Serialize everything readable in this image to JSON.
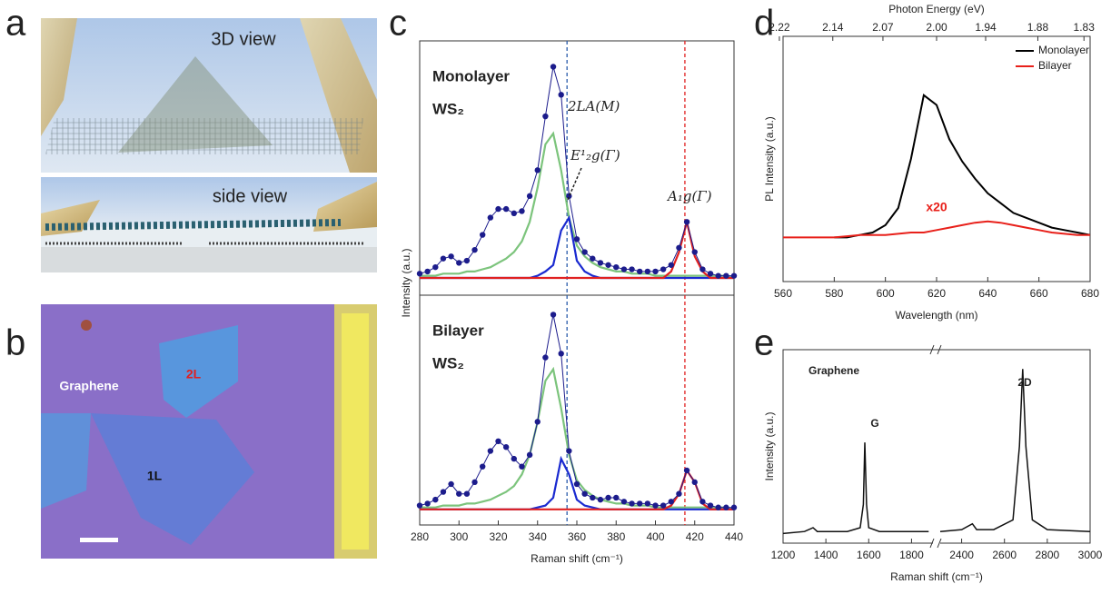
{
  "panels": {
    "labels": [
      "a",
      "b",
      "c",
      "d",
      "e"
    ]
  },
  "panel_a": {
    "captions": [
      "3D view",
      "side view"
    ]
  },
  "panel_b": {
    "labels": [
      "Graphene",
      "2L",
      "1L"
    ]
  },
  "chart_data": [
    {
      "type": "line",
      "ylabel": "Intensity (a.u.)",
      "sample_label": [
        "Monolayer",
        "WS₂"
      ],
      "peak_labels": [
        "2LA(M)",
        "E¹₂g(Γ)",
        "A₁g(Γ)"
      ],
      "x": [
        280,
        284,
        288,
        292,
        296,
        300,
        304,
        308,
        312,
        316,
        320,
        324,
        328,
        332,
        336,
        340,
        344,
        348,
        352,
        356,
        360,
        364,
        368,
        372,
        376,
        380,
        384,
        388,
        392,
        396,
        400,
        404,
        408,
        412,
        416,
        420,
        424,
        428,
        432,
        436,
        440
      ],
      "xlim": [
        280,
        440
      ],
      "ylim": [
        -8,
        110
      ],
      "reference_lines": [
        {
          "value": 355,
          "color": "#2a5caa"
        },
        {
          "value": 415,
          "color": "#e02020"
        }
      ],
      "series": [
        {
          "color": "#7cc47c",
          "values": [
            1,
            1,
            1,
            2,
            2,
            2,
            3,
            3,
            4,
            5,
            7,
            9,
            12,
            17,
            26,
            42,
            62,
            67,
            50,
            28,
            15,
            10,
            7,
            5,
            4,
            3,
            3,
            2,
            2,
            2,
            1,
            1,
            1,
            1,
            1,
            1,
            1,
            1,
            1,
            1,
            0
          ]
        },
        {
          "color": "#1a2ad0",
          "values": [
            0,
            0,
            0,
            0,
            0,
            0,
            0,
            0,
            0,
            0,
            0,
            0,
            0,
            0,
            0,
            1,
            3,
            6,
            22,
            28,
            8,
            3,
            1,
            0,
            0,
            0,
            0,
            0,
            0,
            0,
            0,
            0,
            0,
            0,
            0,
            0,
            0,
            0,
            0,
            0,
            0
          ]
        },
        {
          "color": "#e02020",
          "values": [
            0,
            0,
            0,
            0,
            0,
            0,
            0,
            0,
            0,
            0,
            0,
            0,
            0,
            0,
            0,
            0,
            0,
            0,
            0,
            0,
            0,
            0,
            0,
            0,
            0,
            0,
            0,
            0,
            0,
            0,
            0,
            0,
            3,
            12,
            26,
            10,
            3,
            0,
            0,
            0,
            0
          ]
        },
        {
          "color": "#1c1c8c",
          "marker": true,
          "values": [
            2,
            3,
            5,
            9,
            10,
            7,
            8,
            13,
            20,
            28,
            32,
            32,
            30,
            31,
            38,
            50,
            75,
            98,
            85,
            38,
            18,
            12,
            9,
            7,
            6,
            5,
            4,
            4,
            3,
            3,
            3,
            4,
            6,
            14,
            26,
            12,
            4,
            2,
            1,
            1,
            1
          ]
        }
      ]
    },
    {
      "type": "line",
      "xlabel": "Raman shift (cm⁻¹)",
      "sample_label": [
        "Bilayer",
        "WS₂"
      ],
      "x": [
        280,
        284,
        288,
        292,
        296,
        300,
        304,
        308,
        312,
        316,
        320,
        324,
        328,
        332,
        336,
        340,
        344,
        348,
        352,
        356,
        360,
        364,
        368,
        372,
        376,
        380,
        384,
        388,
        392,
        396,
        400,
        404,
        408,
        412,
        416,
        420,
        424,
        428,
        432,
        436,
        440
      ],
      "xlim": [
        280,
        440
      ],
      "xticks": [
        280,
        300,
        320,
        340,
        360,
        380,
        400,
        420,
        440
      ],
      "ylim": [
        -8,
        110
      ],
      "reference_lines": [
        {
          "value": 355,
          "color": "#2a5caa"
        },
        {
          "value": 415,
          "color": "#e02020"
        }
      ],
      "series": [
        {
          "color": "#7cc47c",
          "values": [
            1,
            1,
            1,
            2,
            2,
            2,
            3,
            3,
            4,
            5,
            7,
            9,
            12,
            18,
            28,
            45,
            66,
            72,
            52,
            28,
            15,
            10,
            7,
            5,
            4,
            3,
            3,
            2,
            2,
            2,
            1,
            1,
            1,
            1,
            1,
            1,
            1,
            1,
            1,
            1,
            0
          ]
        },
        {
          "color": "#1a2ad0",
          "values": [
            0,
            0,
            0,
            0,
            0,
            0,
            0,
            0,
            0,
            0,
            0,
            0,
            0,
            0,
            0,
            1,
            2,
            6,
            26,
            18,
            5,
            2,
            1,
            0,
            0,
            0,
            0,
            0,
            0,
            0,
            0,
            0,
            0,
            0,
            0,
            0,
            0,
            0,
            0,
            0,
            0
          ]
        },
        {
          "color": "#e02020",
          "values": [
            0,
            0,
            0,
            0,
            0,
            0,
            0,
            0,
            0,
            0,
            0,
            0,
            0,
            0,
            0,
            0,
            0,
            0,
            0,
            0,
            0,
            0,
            0,
            0,
            0,
            0,
            0,
            0,
            0,
            0,
            0,
            0,
            2,
            8,
            20,
            14,
            3,
            0,
            0,
            0,
            0
          ]
        },
        {
          "color": "#1c1c8c",
          "marker": true,
          "values": [
            2,
            3,
            5,
            9,
            13,
            8,
            8,
            14,
            22,
            30,
            35,
            32,
            26,
            22,
            28,
            45,
            78,
            100,
            80,
            30,
            13,
            8,
            6,
            5,
            6,
            6,
            4,
            3,
            3,
            3,
            2,
            2,
            4,
            8,
            20,
            14,
            4,
            2,
            1,
            1,
            1
          ]
        }
      ]
    },
    {
      "type": "line",
      "xlabel": "Wavelength (nm)",
      "ylabel": "PL Intensity (a.u.)",
      "x2label": "Photon Energy (eV)",
      "x": [
        560,
        565,
        570,
        575,
        580,
        585,
        590,
        595,
        600,
        605,
        610,
        615,
        620,
        625,
        630,
        635,
        640,
        645,
        650,
        655,
        660,
        665,
        670,
        675,
        680
      ],
      "xlim": [
        560,
        680
      ],
      "xticks": [
        560,
        580,
        600,
        620,
        640,
        660,
        680
      ],
      "x2ticks": [
        2.22,
        2.14,
        2.07,
        {
          "value": 2,
          "label": "2.00"
        },
        1.94,
        1.88,
        1.83
      ],
      "ylim": [
        0,
        100
      ],
      "legend": "upper right",
      "annotations": [
        "x20"
      ],
      "series": [
        {
          "name": "Monolayer",
          "color": "#000000",
          "values": [
            null,
            null,
            null,
            null,
            18,
            18,
            19,
            20,
            23,
            30,
            50,
            76,
            72,
            58,
            49,
            42,
            36,
            32,
            28,
            26,
            24,
            22,
            21,
            20,
            19
          ]
        },
        {
          "name": "Bilayer",
          "color": "#e8201a",
          "values": [
            18,
            18,
            18,
            18,
            18,
            18.5,
            19,
            19,
            19,
            19.5,
            20,
            20,
            21,
            22,
            23,
            24,
            24.5,
            24,
            23,
            22,
            21,
            20,
            19.5,
            19,
            19
          ]
        }
      ]
    },
    {
      "type": "line",
      "title": "Graphene",
      "xlabel": "Raman shift (cm⁻¹)",
      "ylabel": "Intensity (a.u.)",
      "x": [
        1200,
        1300,
        1340,
        1360,
        1500,
        1560,
        1575,
        1582,
        1590,
        1600,
        1650,
        1800,
        1880,
        2100,
        2300,
        2400,
        2450,
        2470,
        2550,
        2640,
        2670,
        2685,
        2700,
        2730,
        2800,
        3000
      ],
      "values": [
        5,
        6,
        8,
        6,
        6,
        8,
        20,
        52,
        20,
        8,
        6,
        6,
        6,
        null,
        6,
        7,
        10,
        7,
        7,
        12,
        50,
        90,
        50,
        12,
        7,
        6
      ],
      "color": "#111111",
      "xlim": [
        1200,
        3000
      ],
      "x_break": [
        1900,
        2300
      ],
      "xticks": [
        1200,
        1400,
        1600,
        1800,
        2400,
        2600,
        2800,
        3000
      ],
      "ylim": [
        0,
        100
      ],
      "peak_labels": [
        "G",
        "2D"
      ]
    }
  ]
}
